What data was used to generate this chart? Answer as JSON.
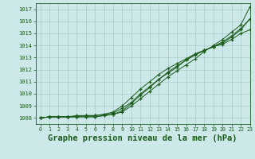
{
  "background_color": "#cce8e8",
  "grid_color": "#aacccc",
  "line_color": "#1a5c1a",
  "marker": "+",
  "title": "Graphe pression niveau de la mer (hPa)",
  "title_fontsize": 7.5,
  "xlim": [
    -0.5,
    23
  ],
  "ylim": [
    1007.5,
    1017.5
  ],
  "yticks": [
    1008,
    1009,
    1010,
    1011,
    1012,
    1013,
    1014,
    1015,
    1016,
    1017
  ],
  "xticks": [
    0,
    1,
    2,
    3,
    4,
    5,
    6,
    7,
    8,
    9,
    10,
    11,
    12,
    13,
    14,
    15,
    16,
    17,
    18,
    19,
    20,
    21,
    22,
    23
  ],
  "series": [
    [
      1008.0,
      1008.1,
      1008.1,
      1008.1,
      1008.1,
      1008.1,
      1008.1,
      1008.2,
      1008.3,
      1008.5,
      1009.0,
      1009.6,
      1010.2,
      1010.8,
      1011.4,
      1011.9,
      1012.4,
      1012.9,
      1013.5,
      1014.0,
      1014.5,
      1015.1,
      1015.7,
      1017.2
    ],
    [
      1008.0,
      1008.1,
      1008.1,
      1008.1,
      1008.1,
      1008.1,
      1008.1,
      1008.2,
      1008.3,
      1008.6,
      1009.2,
      1009.9,
      1010.5,
      1011.2,
      1011.8,
      1012.3,
      1012.8,
      1013.3,
      1013.6,
      1013.9,
      1014.3,
      1014.8,
      1015.4,
      1016.2
    ],
    [
      1008.0,
      1008.1,
      1008.1,
      1008.1,
      1008.2,
      1008.2,
      1008.2,
      1008.3,
      1008.5,
      1009.0,
      1009.7,
      1010.4,
      1011.0,
      1011.6,
      1012.1,
      1012.5,
      1012.9,
      1013.3,
      1013.6,
      1013.9,
      1014.1,
      1014.5,
      1015.0,
      1015.3
    ],
    [
      1008.0,
      1008.1,
      1008.1,
      1008.1,
      1008.1,
      1008.2,
      1008.2,
      1008.3,
      1008.4,
      1008.8,
      1009.3,
      1010.0,
      1010.6,
      1011.2,
      1011.7,
      1012.2,
      1012.8,
      1013.2,
      1013.6,
      1013.9,
      1014.2,
      1014.7,
      1015.3,
      1016.2
    ]
  ]
}
